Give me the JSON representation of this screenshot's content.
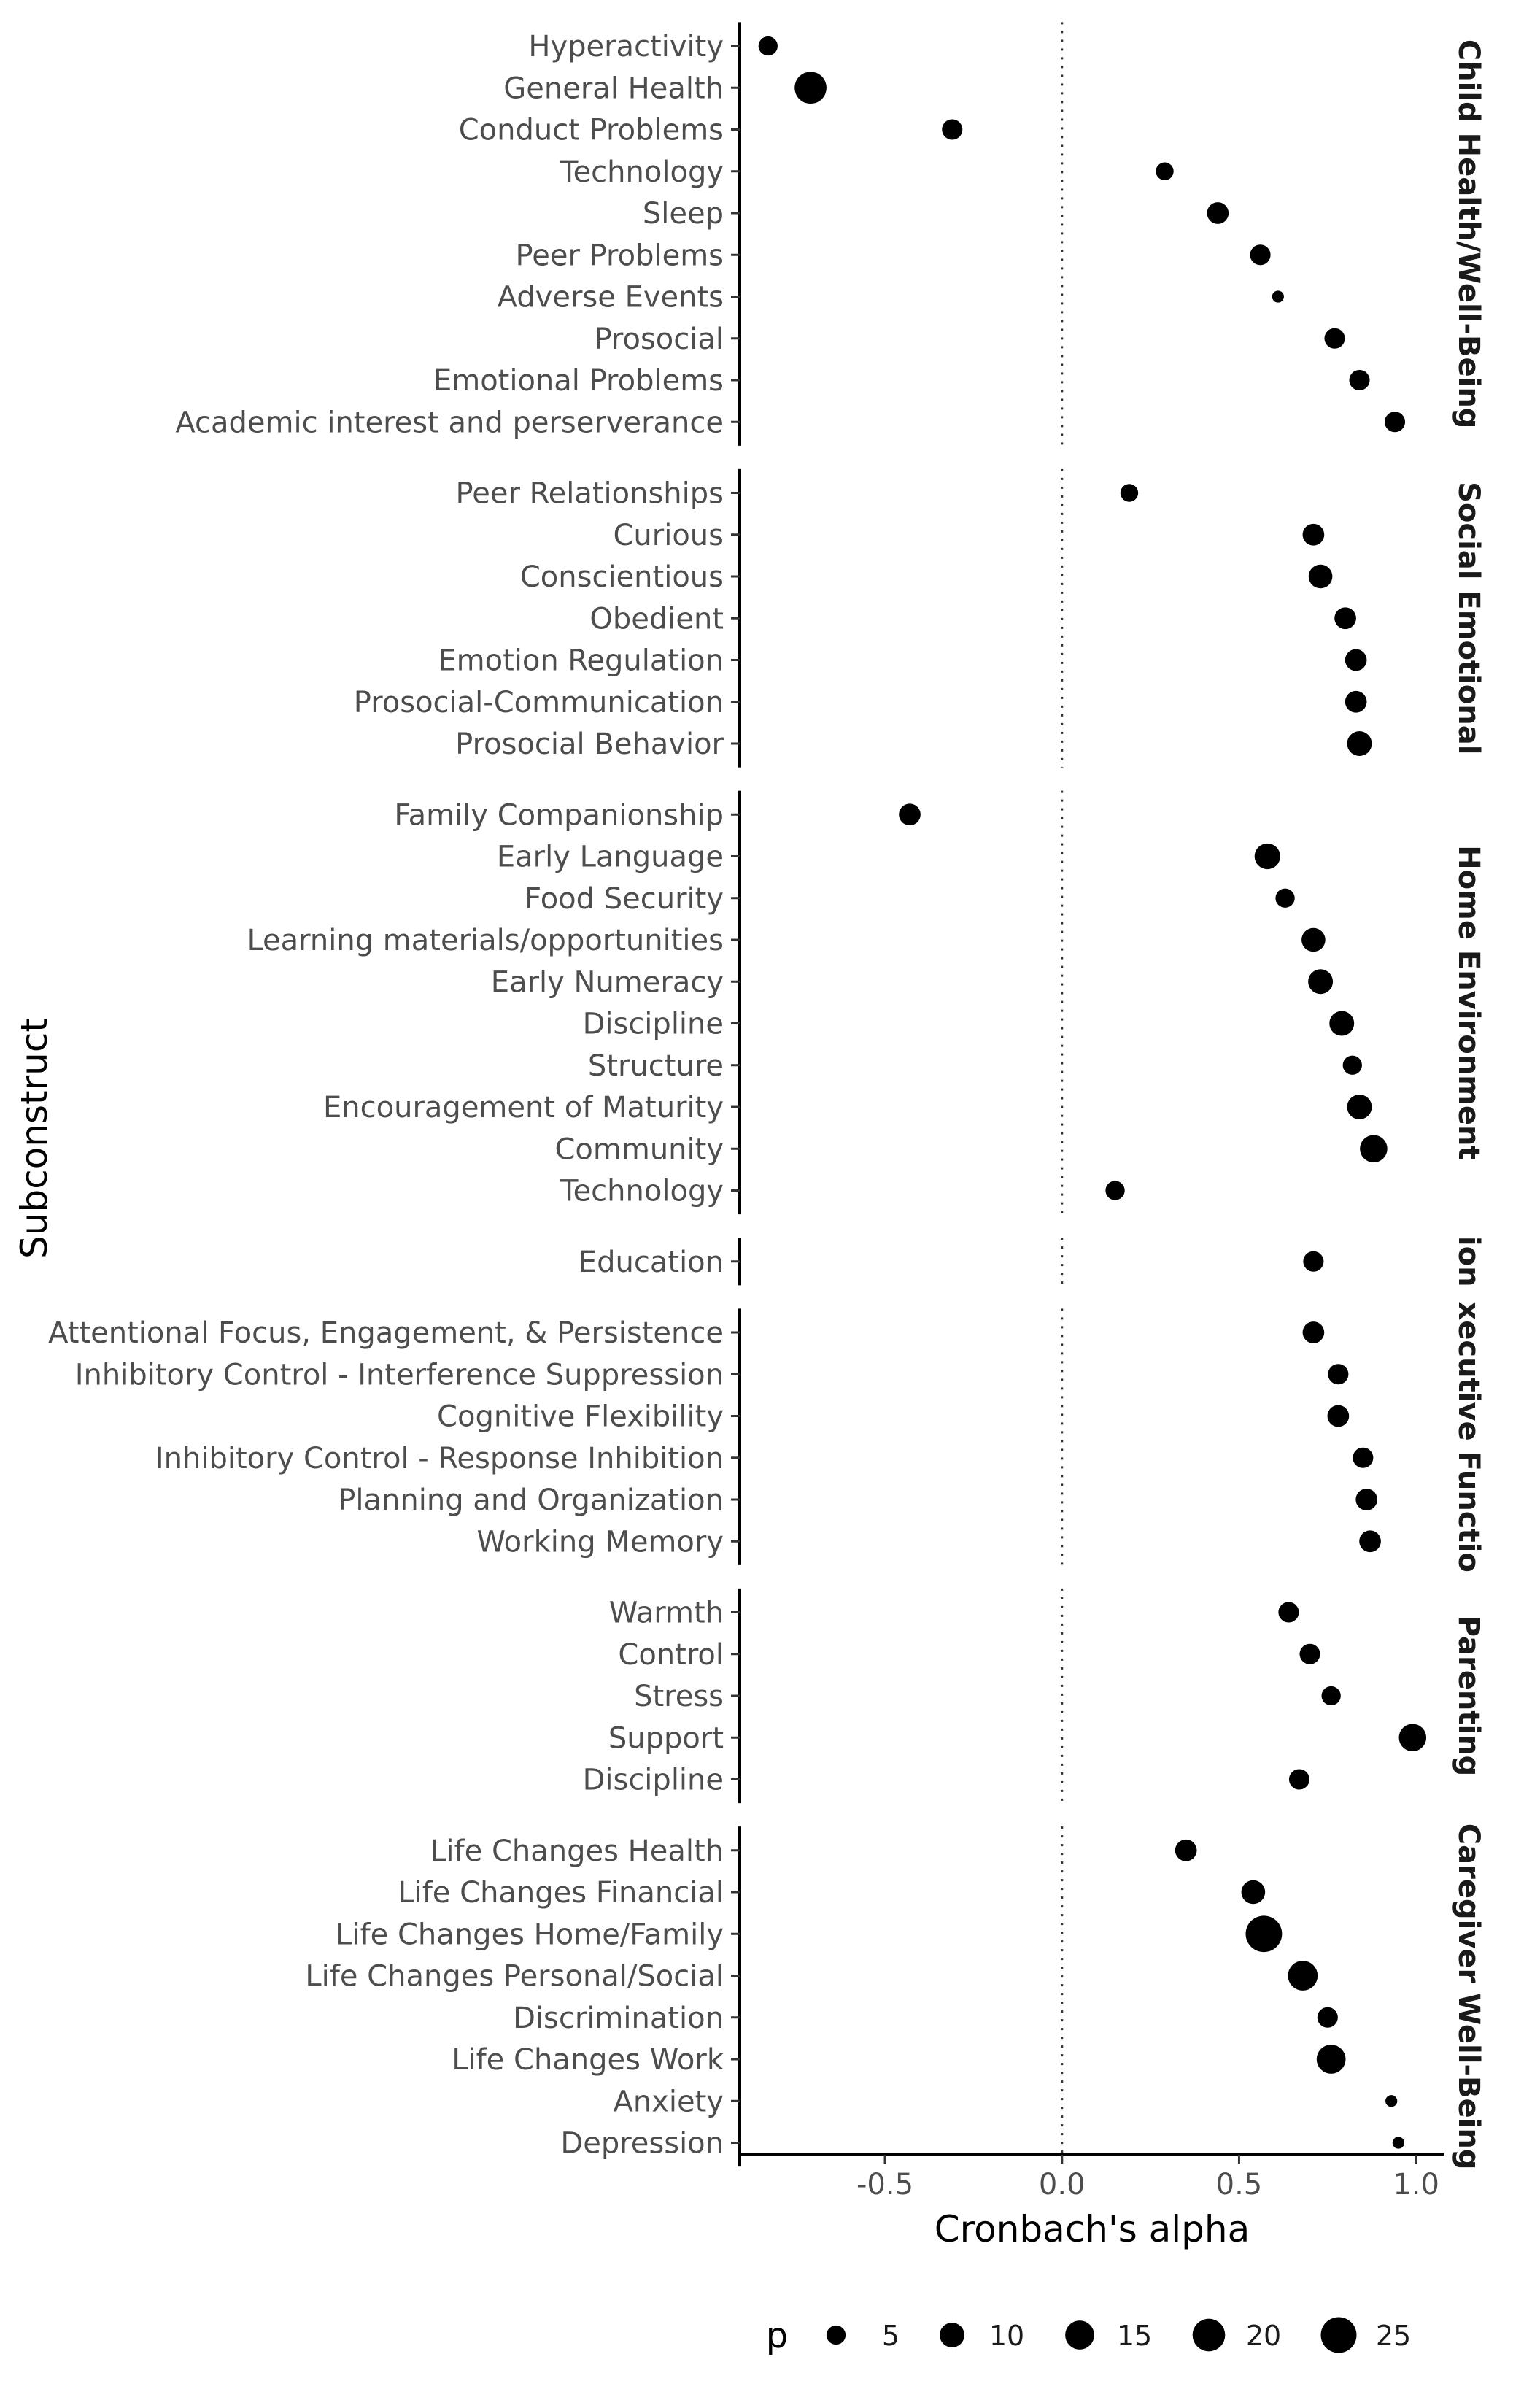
{
  "chart_data": {
    "type": "scatter",
    "title": "",
    "xlabel": "Cronbach's alpha",
    "ylabel": "Subconstruct",
    "xlim": [
      -0.91,
      1.08
    ],
    "xticks": [
      -0.5,
      0.0,
      0.5,
      1.0
    ],
    "xtick_labels": [
      "-0.5",
      "0.0",
      "0.5",
      "1.0"
    ],
    "reference_line_x": 0,
    "grid": false,
    "legend": {
      "title": "p",
      "placement": "bottom",
      "sizes": [
        5,
        10,
        15,
        20,
        25
      ],
      "labels": [
        "5",
        "10",
        "15",
        "20",
        "25"
      ]
    },
    "facets": [
      {
        "label": "Child Health/Well-Being",
        "points": [
          {
            "label": "Hyperactivity",
            "x": -0.83,
            "p": 5
          },
          {
            "label": "General Health",
            "x": -0.71,
            "p": 19
          },
          {
            "label": "Conduct Problems",
            "x": -0.31,
            "p": 6
          },
          {
            "label": "Technology",
            "x": 0.29,
            "p": 4
          },
          {
            "label": "Sleep",
            "x": 0.44,
            "p": 7
          },
          {
            "label": "Peer Problems",
            "x": 0.56,
            "p": 6
          },
          {
            "label": "Adverse Events",
            "x": 0.61,
            "p": 1
          },
          {
            "label": "Prosocial",
            "x": 0.77,
            "p": 6
          },
          {
            "label": "Emotional Problems",
            "x": 0.84,
            "p": 6
          },
          {
            "label": "Academic interest and perserverance",
            "x": 0.94,
            "p": 6
          }
        ]
      },
      {
        "label": "Social Emotional",
        "points": [
          {
            "label": "Peer Relationships",
            "x": 0.19,
            "p": 4
          },
          {
            "label": "Curious",
            "x": 0.71,
            "p": 7
          },
          {
            "label": "Conscientious",
            "x": 0.73,
            "p": 9
          },
          {
            "label": "Obedient",
            "x": 0.8,
            "p": 7
          },
          {
            "label": "Emotion Regulation",
            "x": 0.83,
            "p": 7
          },
          {
            "label": "Prosocial-Communication",
            "x": 0.83,
            "p": 7
          },
          {
            "label": "Prosocial Behavior",
            "x": 0.84,
            "p": 10
          }
        ]
      },
      {
        "label": "Home Environment",
        "points": [
          {
            "label": "Family Companionship",
            "x": -0.43,
            "p": 7
          },
          {
            "label": "Early Language",
            "x": 0.58,
            "p": 11
          },
          {
            "label": "Food Security",
            "x": 0.63,
            "p": 5
          },
          {
            "label": "Learning materials/opportunities",
            "x": 0.71,
            "p": 9
          },
          {
            "label": "Early Numeracy",
            "x": 0.73,
            "p": 10
          },
          {
            "label": "Discipline",
            "x": 0.79,
            "p": 10
          },
          {
            "label": "Structure",
            "x": 0.82,
            "p": 5
          },
          {
            "label": "Encouragement of Maturity",
            "x": 0.84,
            "p": 10
          },
          {
            "label": "Community",
            "x": 0.88,
            "p": 13
          },
          {
            "label": "Technology",
            "x": 0.15,
            "p": 5
          }
        ]
      },
      {
        "label": "ion",
        "points": [
          {
            "label": "Education",
            "x": 0.71,
            "p": 6
          }
        ]
      },
      {
        "label": "xecutive Functio",
        "points": [
          {
            "label": "Attentional Focus, Engagement, & Persistence",
            "x": 0.71,
            "p": 7
          },
          {
            "label": "Inhibitory Control - Interference Suppression",
            "x": 0.78,
            "p": 6
          },
          {
            "label": "Cognitive Flexibility",
            "x": 0.78,
            "p": 7
          },
          {
            "label": "Inhibitory Control - Response Inhibition",
            "x": 0.85,
            "p": 6
          },
          {
            "label": "Planning and Organization",
            "x": 0.86,
            "p": 7
          },
          {
            "label": "Working Memory",
            "x": 0.87,
            "p": 7
          }
        ]
      },
      {
        "label": "Parenting",
        "points": [
          {
            "label": "Warmth",
            "x": 0.64,
            "p": 6
          },
          {
            "label": "Control",
            "x": 0.7,
            "p": 6
          },
          {
            "label": "Stress",
            "x": 0.76,
            "p": 5
          },
          {
            "label": "Support",
            "x": 0.99,
            "p": 13
          },
          {
            "label": "Discipline",
            "x": 0.67,
            "p": 6
          }
        ]
      },
      {
        "label": "Caregiver Well-Being",
        "points": [
          {
            "label": "Life Changes Health",
            "x": 0.35,
            "p": 7
          },
          {
            "label": "Life Changes Financial",
            "x": 0.54,
            "p": 9
          },
          {
            "label": "Life Changes Home/Family",
            "x": 0.57,
            "p": 26
          },
          {
            "label": "Life Changes Personal/Social",
            "x": 0.68,
            "p": 16
          },
          {
            "label": "Discrimination",
            "x": 0.75,
            "p": 6
          },
          {
            "label": "Life Changes Work",
            "x": 0.76,
            "p": 15
          },
          {
            "label": "Anxiety",
            "x": 0.93,
            "p": 1
          },
          {
            "label": "Depression",
            "x": 0.95,
            "p": 1
          }
        ]
      }
    ]
  }
}
